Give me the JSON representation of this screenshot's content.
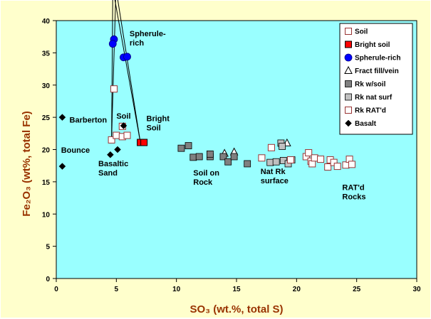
{
  "colors": {
    "frame_bg": "#FFFFCC",
    "plot_bg": "#99FFFF",
    "axis_title": "#993300",
    "soil_edge": "#993333",
    "bright_soil": "#FF0000",
    "spherule": "#0000FF",
    "rk_soil": "#808080",
    "rk_nat": "#C0C0C0",
    "basalt": "#000000"
  },
  "chart_data": {
    "type": "scatter",
    "xlabel": "SO₃ (wt.%, total S)",
    "ylabel": "Fe₂O₃ (wt%, total Fe)",
    "xlim": [
      0,
      30
    ],
    "ylim": [
      0,
      40
    ],
    "xticks": [
      "0",
      "5",
      "10",
      "15",
      "20",
      "25",
      "30"
    ],
    "yticks": [
      "0",
      "5",
      "10",
      "15",
      "20",
      "25",
      "30",
      "35",
      "40"
    ],
    "grid": false,
    "legend_placement": "top-right",
    "series": [
      {
        "name": "Soil",
        "marker": "square-open",
        "points": [
          [
            4.6,
            21.5
          ],
          [
            4.8,
            29.4
          ],
          [
            5.0,
            22.2
          ],
          [
            5.5,
            22.0
          ],
          [
            5.9,
            22.2
          ],
          [
            5.5,
            23.6
          ]
        ]
      },
      {
        "name": "Bright soil",
        "marker": "square-filled-red",
        "points": [
          [
            7.0,
            21.1
          ],
          [
            7.3,
            21.1
          ]
        ]
      },
      {
        "name": "Spherule-rich",
        "marker": "circle",
        "points": [
          [
            4.8,
            37.1
          ],
          [
            4.7,
            36.4
          ],
          [
            5.6,
            34.3
          ],
          [
            5.9,
            34.4
          ]
        ]
      },
      {
        "name": "Fract fill/vein",
        "marker": "triangle-open",
        "points": [
          [
            14.0,
            19.4
          ],
          [
            14.8,
            19.6
          ],
          [
            19.2,
            21.0
          ]
        ]
      },
      {
        "name": "Rk w/soil",
        "marker": "square-filled-dark",
        "points": [
          [
            10.4,
            20.2
          ],
          [
            11.0,
            20.6
          ],
          [
            11.4,
            18.8
          ],
          [
            11.9,
            18.9
          ],
          [
            12.8,
            18.9
          ],
          [
            12.8,
            19.3
          ],
          [
            13.9,
            18.9
          ],
          [
            14.3,
            18.1
          ],
          [
            14.8,
            18.9
          ],
          [
            15.9,
            17.8
          ]
        ]
      },
      {
        "name": "Rk nat surf",
        "marker": "square-filled-light",
        "points": [
          [
            17.8,
            18.0
          ],
          [
            18.3,
            18.1
          ],
          [
            18.7,
            21.0
          ],
          [
            18.8,
            20.5
          ],
          [
            18.9,
            18.3
          ],
          [
            19.3,
            17.8
          ],
          [
            19.6,
            18.4
          ]
        ]
      },
      {
        "name": "Rk RAT'd",
        "marker": "square-open",
        "points": [
          [
            17.1,
            18.7
          ],
          [
            17.9,
            20.3
          ],
          [
            19.5,
            18.4
          ],
          [
            20.8,
            18.9
          ],
          [
            21.0,
            19.5
          ],
          [
            21.2,
            18.2
          ],
          [
            21.3,
            17.8
          ],
          [
            21.5,
            18.7
          ],
          [
            22.0,
            18.5
          ],
          [
            22.6,
            17.3
          ],
          [
            22.8,
            18.4
          ],
          [
            23.1,
            18.0
          ],
          [
            23.4,
            17.4
          ],
          [
            24.1,
            17.6
          ],
          [
            24.4,
            18.5
          ],
          [
            24.6,
            17.7
          ]
        ]
      },
      {
        "name": "Basalt",
        "marker": "diamond",
        "points": [
          [
            0.5,
            25.0
          ],
          [
            0.5,
            17.4
          ],
          [
            4.5,
            19.2
          ],
          [
            5.1,
            20.0
          ],
          [
            5.6,
            23.7
          ]
        ]
      }
    ],
    "annotations": [
      {
        "lines": [
          "Barberton"
        ],
        "x": 1.1,
        "y": 24.2,
        "align": "start"
      },
      {
        "lines": [
          "Bounce"
        ],
        "x": 0.4,
        "y": 19.5,
        "align": "start"
      },
      {
        "lines": [
          "Basaltic",
          "Sand"
        ],
        "x": 3.5,
        "y": 17.4,
        "align": "start"
      },
      {
        "lines": [
          "Soil"
        ],
        "x": 5.0,
        "y": 24.8,
        "align": "start"
      },
      {
        "lines": [
          "Bright",
          "Soil"
        ],
        "x": 7.5,
        "y": 24.4,
        "align": "start"
      },
      {
        "lines": [
          "Spherule-",
          "rich"
        ],
        "x": 6.1,
        "y": 37.6,
        "align": "start"
      },
      {
        "lines": [
          "Soil on",
          "Rock"
        ],
        "x": 11.4,
        "y": 16.0,
        "align": "start"
      },
      {
        "lines": [
          "Nat Rk",
          "surface"
        ],
        "x": 17.0,
        "y": 16.2,
        "align": "start"
      },
      {
        "lines": [
          "RAT'd",
          "Rocks"
        ],
        "x": 23.8,
        "y": 13.7,
        "align": "start"
      }
    ],
    "mixing_lines": [
      {
        "from": [
          4.6,
          21.5
        ],
        "to": [
          4.7,
          44.0
        ]
      },
      {
        "from": [
          4.6,
          21.5
        ],
        "to": [
          4.95,
          44.0
        ]
      },
      {
        "from": [
          7.0,
          21.1
        ],
        "to": [
          4.8,
          44.0
        ]
      },
      {
        "from": [
          7.0,
          21.1
        ],
        "to": [
          5.05,
          44.0
        ]
      }
    ]
  }
}
